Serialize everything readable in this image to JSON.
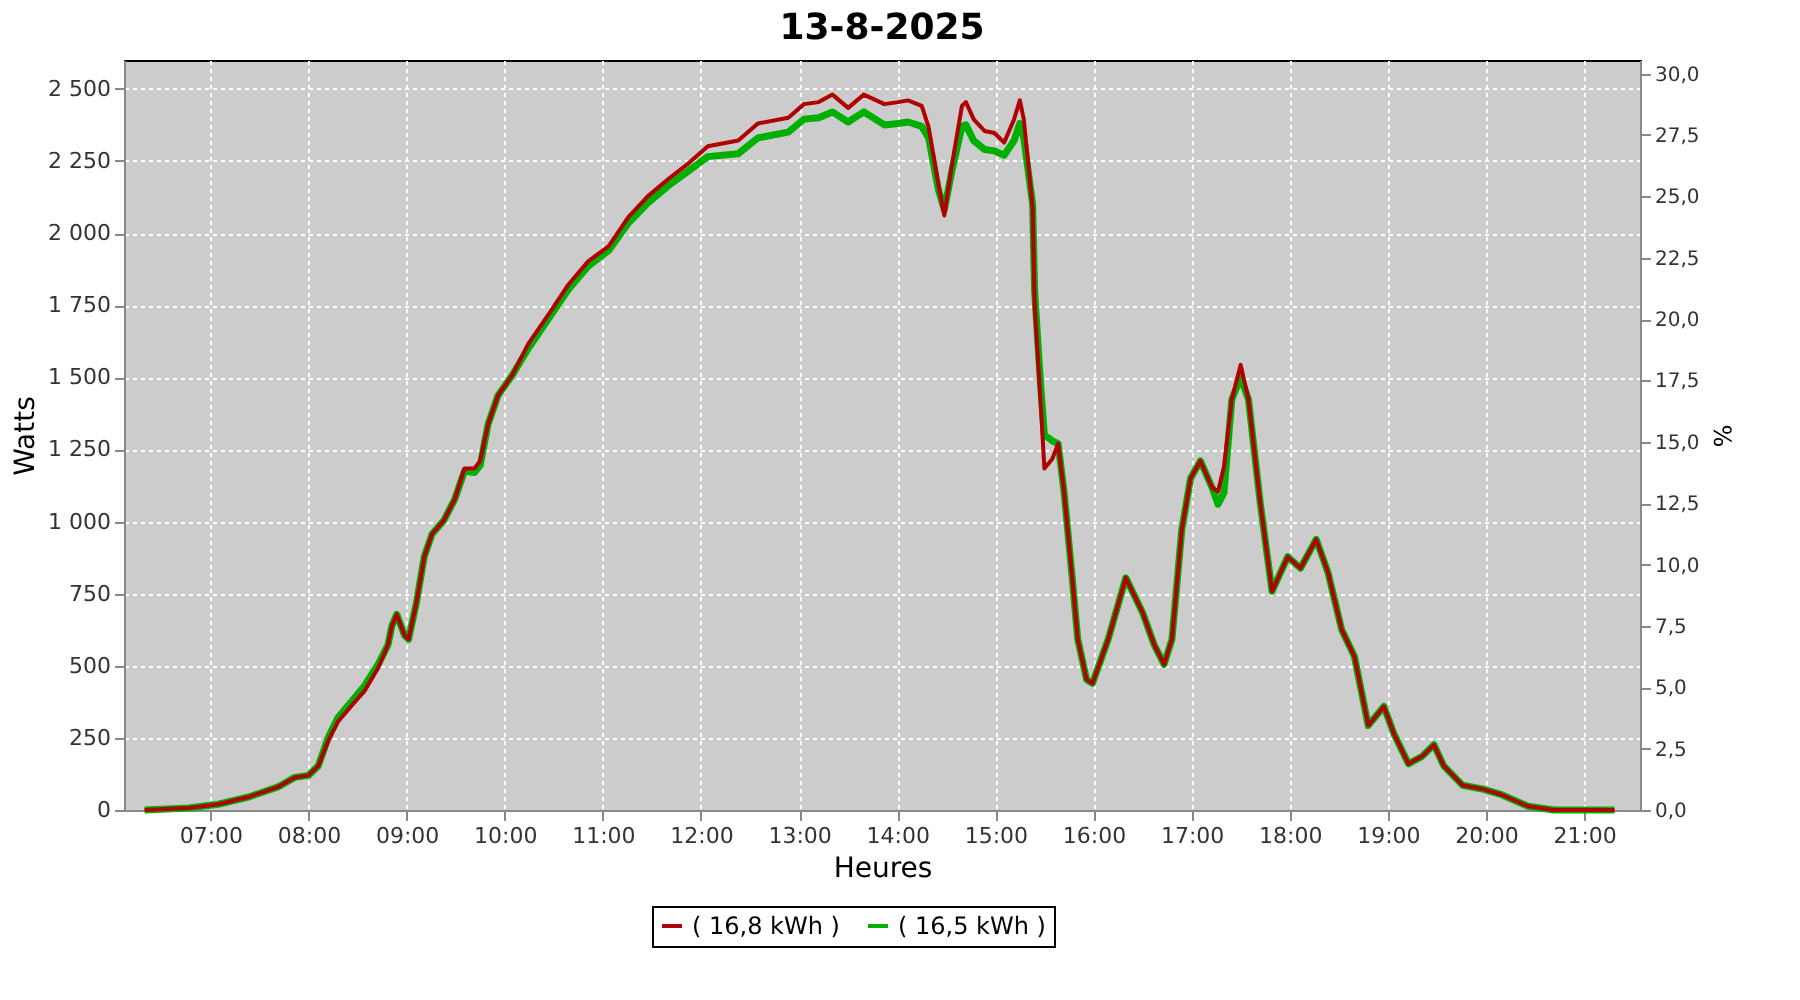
{
  "chart_data": {
    "type": "line",
    "title": "13-8-2025",
    "xlabel": "Heures",
    "ylabel": "Watts",
    "y2label": "%",
    "x": [
      6.33,
      6.78,
      7.08,
      7.39,
      7.69,
      7.86,
      8.0,
      8.1,
      8.2,
      8.3,
      8.45,
      8.57,
      8.71,
      8.81,
      8.85,
      8.9,
      8.98,
      9.02,
      9.1,
      9.18,
      9.26,
      9.38,
      9.49,
      9.59,
      9.69,
      9.75,
      9.83,
      9.93,
      10.08,
      10.24,
      10.44,
      10.65,
      10.85,
      11.06,
      11.26,
      11.46,
      11.67,
      11.87,
      12.07,
      12.38,
      12.58,
      12.89,
      13.05,
      13.2,
      13.34,
      13.5,
      13.66,
      13.87,
      14.01,
      14.11,
      14.25,
      14.32,
      14.42,
      14.48,
      14.56,
      14.66,
      14.7,
      14.78,
      14.89,
      14.99,
      15.09,
      15.19,
      15.25,
      15.29,
      15.38,
      15.4,
      15.46,
      15.5,
      15.58,
      15.64,
      15.7,
      15.78,
      15.84,
      15.93,
      15.99,
      16.15,
      16.33,
      16.5,
      16.62,
      16.72,
      16.8,
      16.9,
      16.99,
      17.09,
      17.21,
      17.27,
      17.33,
      17.41,
      17.5,
      17.58,
      17.7,
      17.82,
      17.98,
      18.11,
      18.27,
      18.39,
      18.53,
      18.66,
      18.8,
      18.96,
      19.06,
      19.21,
      19.35,
      19.47,
      19.57,
      19.76,
      19.96,
      20.16,
      20.43,
      20.69,
      21.31
    ],
    "series": [
      {
        "name": "( 16,8 kWh )",
        "color": "#b00000",
        "values": [
          0,
          7,
          20,
          45,
          80,
          113,
          120,
          153,
          239,
          306,
          366,
          412,
          492,
          572,
          638,
          678,
          605,
          592,
          718,
          878,
          957,
          1004,
          1077,
          1184,
          1184,
          1210,
          1337,
          1436,
          1509,
          1616,
          1715,
          1822,
          1902,
          1955,
          2055,
          2128,
          2188,
          2241,
          2301,
          2321,
          2380,
          2400,
          2447,
          2454,
          2480,
          2434,
          2480,
          2447,
          2454,
          2460,
          2441,
          2367,
          2168,
          2061,
          2241,
          2441,
          2454,
          2394,
          2354,
          2347,
          2314,
          2394,
          2460,
          2394,
          2088,
          1755,
          1423,
          1184,
          1217,
          1270,
          1104,
          818,
          592,
          452,
          439,
          592,
          805,
          685,
          572,
          505,
          592,
          971,
          1150,
          1210,
          1117,
          1104,
          1190,
          1423,
          1543,
          1423,
          1064,
          758,
          878,
          838,
          938,
          824,
          625,
          532,
          293,
          359,
          266,
          160,
          186,
          226,
          153,
          86,
          73,
          53,
          13,
          0,
          0
        ]
      },
      {
        "name": "( 16,5 kWh )",
        "color": "#00b000",
        "values": [
          0,
          7,
          20,
          45,
          80,
          113,
          120,
          153,
          250,
          320,
          380,
          430,
          505,
          572,
          638,
          678,
          605,
          592,
          718,
          878,
          957,
          1004,
          1077,
          1175,
          1170,
          1195,
          1337,
          1436,
          1509,
          1600,
          1700,
          1805,
          1885,
          1940,
          2035,
          2105,
          2165,
          2215,
          2265,
          2275,
          2330,
          2350,
          2395,
          2400,
          2420,
          2385,
          2420,
          2375,
          2380,
          2385,
          2370,
          2330,
          2150,
          2080,
          2220,
          2370,
          2375,
          2320,
          2290,
          2285,
          2270,
          2320,
          2380,
          2330,
          2100,
          1800,
          1480,
          1300,
          1280,
          1270,
          1104,
          818,
          592,
          452,
          439,
          592,
          805,
          685,
          572,
          505,
          592,
          971,
          1150,
          1210,
          1117,
          1060,
          1100,
          1423,
          1500,
          1423,
          1064,
          758,
          878,
          838,
          938,
          824,
          625,
          532,
          293,
          359,
          266,
          160,
          186,
          226,
          153,
          86,
          73,
          53,
          13,
          0,
          0
        ]
      }
    ],
    "xlim": [
      6.12,
      21.57
    ],
    "xticks": [
      {
        "value": 7,
        "label": "07:00"
      },
      {
        "value": 8,
        "label": "08:00"
      },
      {
        "value": 9,
        "label": "09:00"
      },
      {
        "value": 10,
        "label": "10:00"
      },
      {
        "value": 11,
        "label": "11:00"
      },
      {
        "value": 12,
        "label": "12:00"
      },
      {
        "value": 13,
        "label": "13:00"
      },
      {
        "value": 14,
        "label": "14:00"
      },
      {
        "value": 15,
        "label": "15:00"
      },
      {
        "value": 16,
        "label": "16:00"
      },
      {
        "value": 17,
        "label": "17:00"
      },
      {
        "value": 18,
        "label": "18:00"
      },
      {
        "value": 19,
        "label": "19:00"
      },
      {
        "value": 20,
        "label": "20:00"
      },
      {
        "value": 21,
        "label": "21:00"
      }
    ],
    "ylim": [
      0,
      2600
    ],
    "yticks": [
      0,
      250,
      500,
      750,
      {
        "value": 1000,
        "label": "1 000"
      },
      {
        "value": 1250,
        "label": "1 250"
      },
      {
        "value": 1500,
        "label": "1 500"
      },
      {
        "value": 1750,
        "label": "1 750"
      },
      {
        "value": 2000,
        "label": "2 000"
      },
      {
        "value": 2250,
        "label": "2 250"
      },
      {
        "value": 2500,
        "label": "2 500"
      }
    ],
    "y2lim": [
      0,
      30.55
    ],
    "y2ticks": [
      {
        "value": 0,
        "label": "0,0"
      },
      {
        "value": 2.5,
        "label": "2,5"
      },
      {
        "value": 5,
        "label": "5,0"
      },
      {
        "value": 7.5,
        "label": "7,5"
      },
      {
        "value": 10,
        "label": "10,0"
      },
      {
        "value": 12.5,
        "label": "12,5"
      },
      {
        "value": 15,
        "label": "15,0"
      },
      {
        "value": 17.5,
        "label": "17,5"
      },
      {
        "value": 20,
        "label": "20,0"
      },
      {
        "value": 22.5,
        "label": "22,5"
      },
      {
        "value": 25,
        "label": "25,0"
      },
      {
        "value": 27.5,
        "label": "27,5"
      },
      {
        "value": 30,
        "label": "30,0"
      }
    ],
    "grid": true,
    "legend": "bottom",
    "marker": "none",
    "line_style": "solid"
  }
}
